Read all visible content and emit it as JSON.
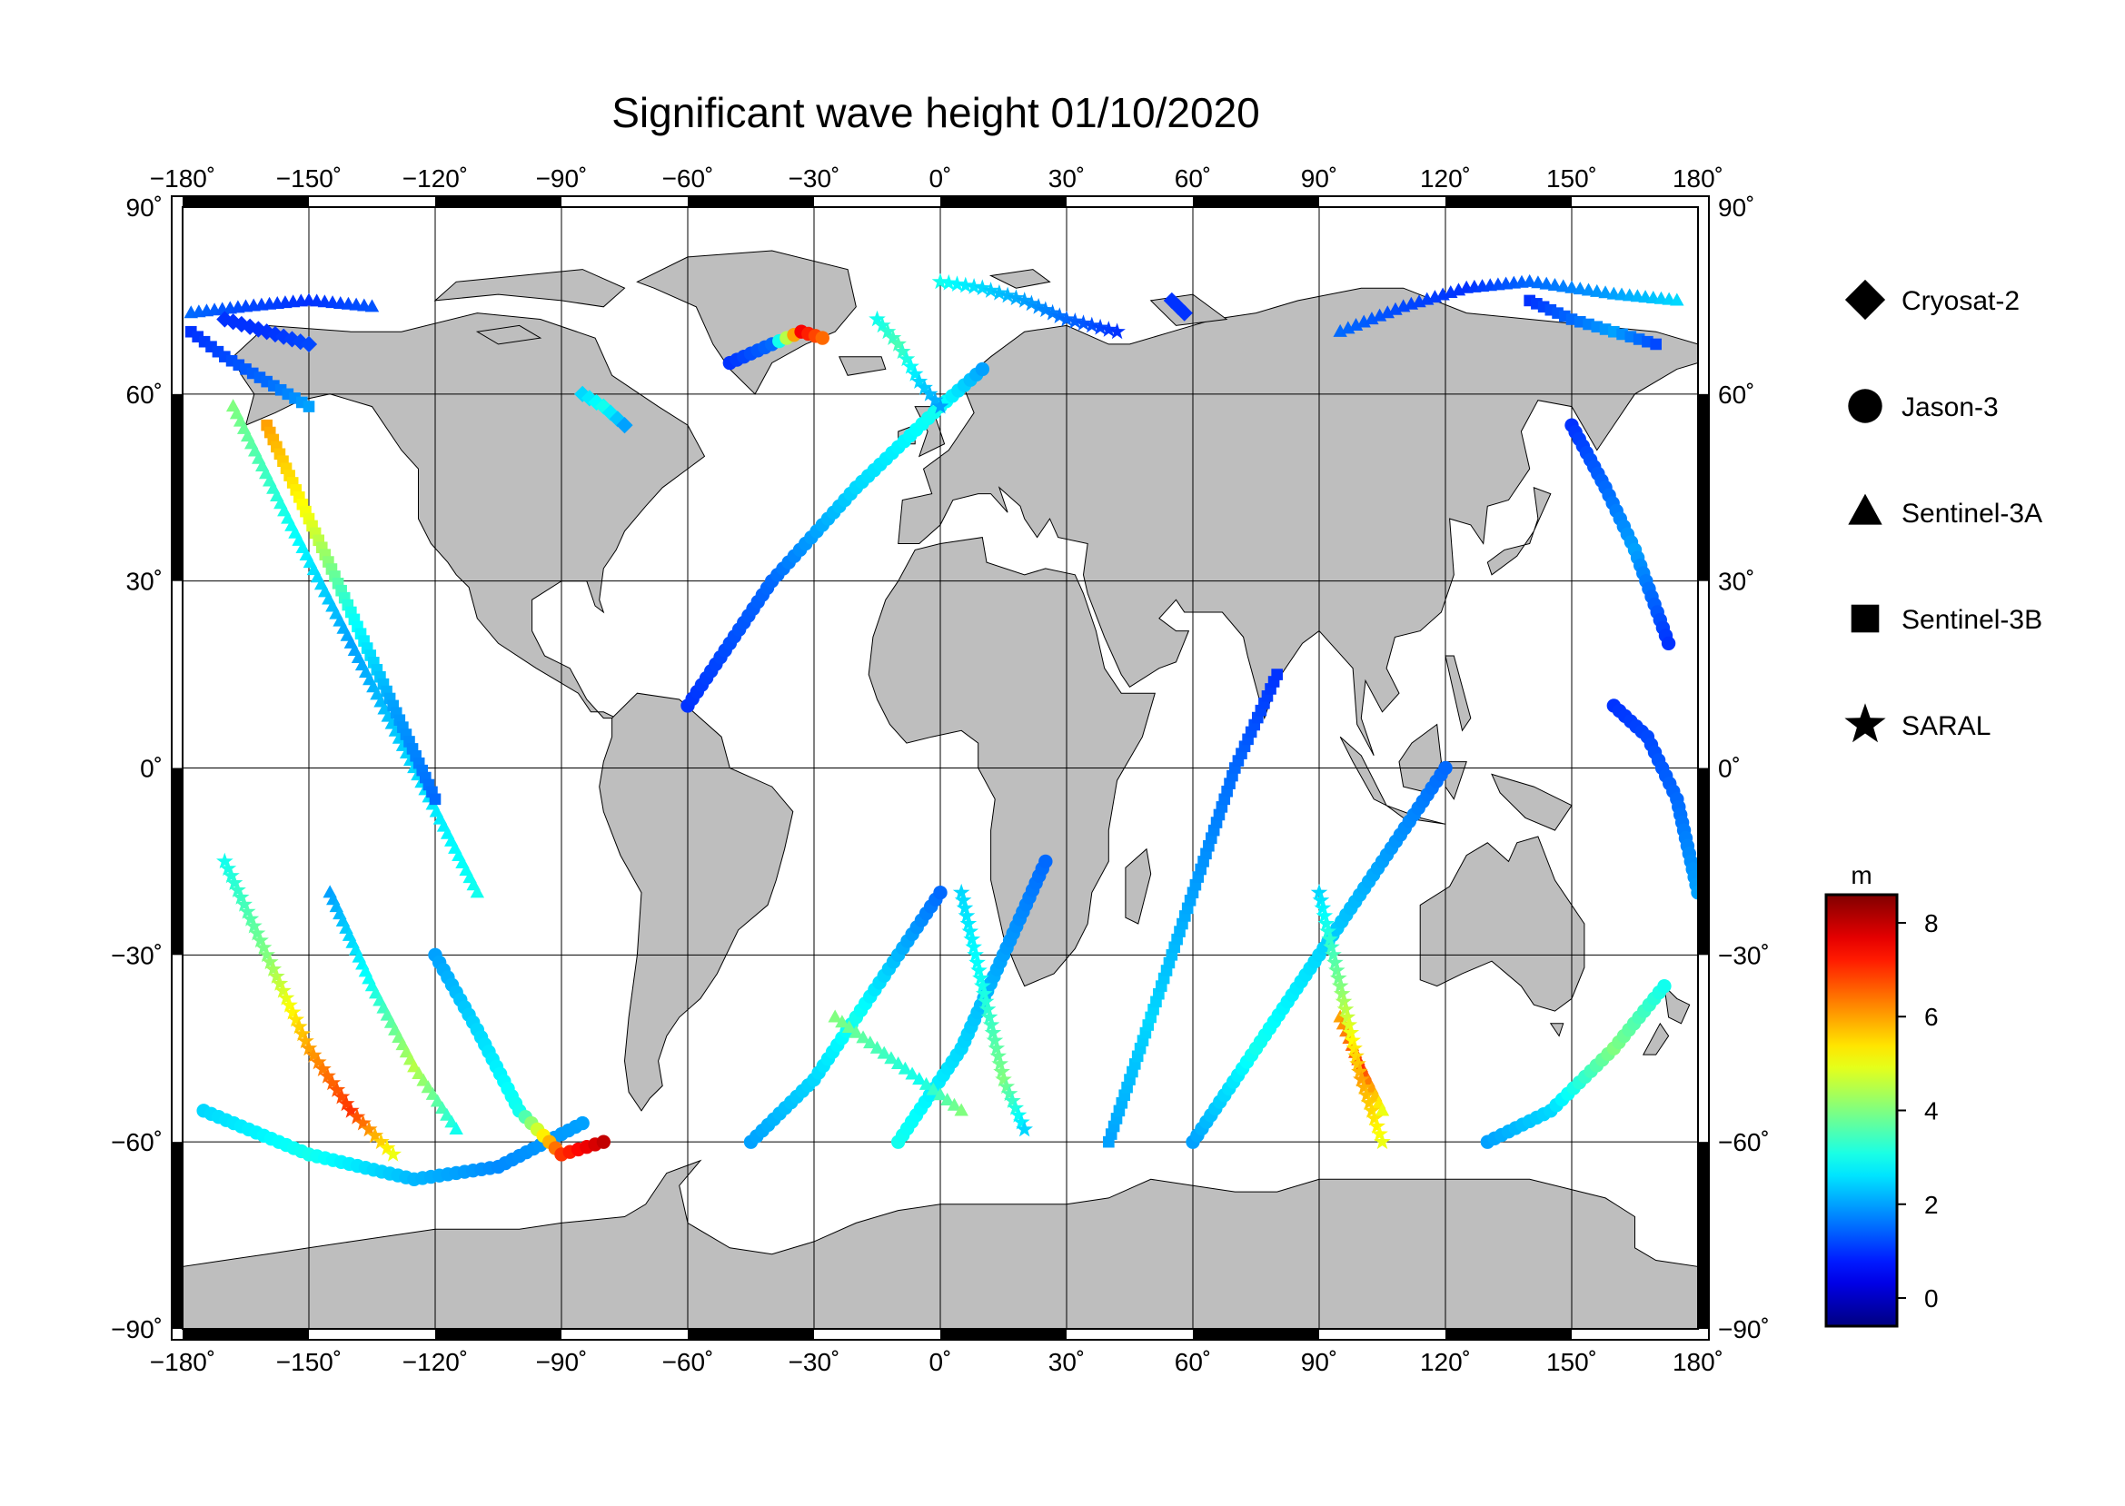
{
  "title": "Significant wave height 01/10/2020",
  "map": {
    "lon_range": [
      -180,
      180
    ],
    "lat_range": [
      -90,
      90
    ],
    "lon_ticks": [
      -180,
      -150,
      -120,
      -90,
      -60,
      -30,
      0,
      30,
      60,
      90,
      120,
      150,
      180
    ],
    "lat_ticks": [
      -90,
      -60,
      -30,
      0,
      30,
      60,
      90
    ],
    "lon_tick_labels": [
      "−180˚",
      "−150˚",
      "−120˚",
      "−90˚",
      "−60˚",
      "−30˚",
      "0˚",
      "30˚",
      "60˚",
      "90˚",
      "120˚",
      "150˚",
      "180˚"
    ],
    "lat_tick_labels": [
      "−90˚",
      "−60˚",
      "−30˚",
      "0˚",
      "30˚",
      "60˚",
      "90˚"
    ],
    "land_color": "#bebebe",
    "ocean_color": "#ffffff",
    "grid": true
  },
  "legend": {
    "items": [
      {
        "label": "Cryosat-2",
        "symbol": "diamond"
      },
      {
        "label": "Jason-3",
        "symbol": "circle"
      },
      {
        "label": "Sentinel-3A",
        "symbol": "triangle"
      },
      {
        "label": "Sentinel-3B",
        "symbol": "square"
      },
      {
        "label": "SARAL",
        "symbol": "star"
      }
    ]
  },
  "colorbar": {
    "unit": "m",
    "min": -0.6,
    "max": 8.6,
    "ticks": [
      0,
      2,
      4,
      6,
      8
    ],
    "tick_labels": [
      "0",
      "2",
      "4",
      "6",
      "8"
    ],
    "colormap": "jet"
  },
  "chart_data": {
    "type": "scatter",
    "title": "Significant wave height 01/10/2020",
    "xlabel": "",
    "ylabel": "",
    "xlim": [
      -180,
      180
    ],
    "ylim": [
      -90,
      90
    ],
    "color_variable": "significant wave height (m)",
    "series": [
      {
        "name": "Jason-3",
        "symbol": "circle",
        "tracks": [
          {
            "lon": [
              -175,
              -150,
              -125,
              -105,
              -85
            ],
            "lat": [
              -55,
              -62,
              -66,
              -64,
              -57
            ],
            "values": [
              2.5,
              3,
              2.2,
              1.8,
              2.0
            ]
          },
          {
            "lon": [
              -120,
              -110,
              -100,
              -90,
              -80
            ],
            "lat": [
              -30,
              -42,
              -55,
              -62,
              -60
            ],
            "values": [
              2,
              2.5,
              3,
              7,
              8
            ]
          },
          {
            "lon": [
              -60,
              -40,
              -20,
              0,
              10
            ],
            "lat": [
              10,
              30,
              45,
              58,
              64
            ],
            "values": [
              1,
              1.5,
              2.5,
              3,
              2
            ]
          },
          {
            "lon": [
              -45,
              -30,
              -20,
              -10,
              0
            ],
            "lat": [
              -60,
              -50,
              -40,
              -30,
              -20
            ],
            "values": [
              2,
              2.5,
              3,
              2.2,
              1.5
            ]
          },
          {
            "lon": [
              -10,
              5,
              15,
              25
            ],
            "lat": [
              -60,
              -45,
              -30,
              -15
            ],
            "values": [
              3,
              2.5,
              2,
              1.5
            ]
          },
          {
            "lon": [
              60,
              75,
              90,
              105,
              120
            ],
            "lat": [
              -60,
              -45,
              -30,
              -15,
              0
            ],
            "values": [
              2,
              3,
              2.5,
              2,
              1.5
            ]
          },
          {
            "lon": [
              130,
              145,
              160,
              172
            ],
            "lat": [
              -60,
              -55,
              -45,
              -35
            ],
            "values": [
              2,
              2.5,
              4,
              3
            ]
          },
          {
            "lon": [
              150,
              158,
              165,
              173
            ],
            "lat": [
              55,
              45,
              35,
              20
            ],
            "values": [
              1,
              1.5,
              2,
              1
            ]
          },
          {
            "lon": [
              160,
              168,
              175,
              180
            ],
            "lat": [
              10,
              5,
              -5,
              -20
            ],
            "values": [
              1,
              1.2,
              1.5,
              2
            ]
          },
          {
            "lon": [
              -50,
              -40,
              -33,
              -28
            ],
            "lat": [
              65,
              68,
              70,
              69
            ],
            "values": [
              1,
              1.5,
              7.5,
              6.5
            ]
          }
        ]
      },
      {
        "name": "Sentinel-3A",
        "symbol": "triangle",
        "tracks": [
          {
            "lon": [
              -178,
              -165,
              -150,
              -135
            ],
            "lat": [
              73,
              74,
              75,
              74
            ],
            "values": [
              1.5,
              1.2,
              1.0,
              1.3
            ]
          },
          {
            "lon": [
              95,
              110,
              125,
              140,
              160,
              175
            ],
            "lat": [
              70,
              74,
              77,
              78,
              76,
              75
            ],
            "values": [
              1.5,
              1.2,
              1.0,
              1.5,
              2.0,
              2.5
            ]
          },
          {
            "lon": [
              -168,
              -155,
              -140,
              -125,
              -110
            ],
            "lat": [
              58,
              40,
              20,
              0,
              -20
            ],
            "values": [
              4,
              3,
              2,
              2.5,
              3
            ]
          },
          {
            "lon": [
              -145,
              -135,
              -125,
              -115
            ],
            "lat": [
              -20,
              -35,
              -48,
              -58
            ],
            "values": [
              2,
              3,
              4.5,
              3
            ]
          },
          {
            "lon": [
              -25,
              -15,
              -5,
              5
            ],
            "lat": [
              -40,
              -45,
              -50,
              -55
            ],
            "values": [
              4,
              3.5,
              3,
              4
            ]
          },
          {
            "lon": [
              95,
              100,
              105
            ],
            "lat": [
              -40,
              -48,
              -55
            ],
            "values": [
              6,
              7,
              5
            ]
          }
        ]
      },
      {
        "name": "Sentinel-3B",
        "symbol": "square",
        "tracks": [
          {
            "lon": [
              -178,
              -170,
              -160,
              -150
            ],
            "lat": [
              70,
              66,
              62,
              58
            ],
            "values": [
              1.0,
              1.2,
              1.5,
              2
            ]
          },
          {
            "lon": [
              140,
              150,
              160,
              170
            ],
            "lat": [
              75,
              72,
              70,
              68
            ],
            "values": [
              1.0,
              1.5,
              2.0,
              1.2
            ]
          },
          {
            "lon": [
              -160,
              -150,
              -140,
              -130,
              -120
            ],
            "lat": [
              55,
              40,
              25,
              10,
              -5
            ],
            "values": [
              6,
              5,
              3,
              2,
              1.5
            ]
          },
          {
            "lon": [
              40,
              50,
              60,
              70,
              80
            ],
            "lat": [
              -60,
              -40,
              -20,
              0,
              15
            ],
            "values": [
              2,
              2.5,
              2,
              1.5,
              1
            ]
          }
        ]
      },
      {
        "name": "SARAL",
        "symbol": "star",
        "tracks": [
          {
            "lon": [
              0,
              10,
              20,
              30,
              42
            ],
            "lat": [
              78,
              77,
              75,
              72,
              70
            ],
            "values": [
              3,
              2.5,
              2,
              1.5,
              1
            ]
          },
          {
            "lon": [
              -15,
              -10,
              -5,
              0
            ],
            "lat": [
              72,
              68,
              62,
              58
            ],
            "values": [
              3,
              3.5,
              2.5,
              2
            ]
          },
          {
            "lon": [
              -170,
              -160,
              -150,
              -140,
              -130
            ],
            "lat": [
              -15,
              -30,
              -45,
              -55,
              -62
            ],
            "values": [
              3,
              4,
              6,
              7,
              5
            ]
          },
          {
            "lon": [
              5,
              10,
              15,
              20
            ],
            "lat": [
              -20,
              -35,
              -50,
              -58
            ],
            "values": [
              2.5,
              3,
              4,
              2.5
            ]
          },
          {
            "lon": [
              90,
              95,
              100,
              105
            ],
            "lat": [
              -20,
              -35,
              -50,
              -60
            ],
            "values": [
              2.5,
              4,
              6,
              5
            ]
          }
        ]
      },
      {
        "name": "Cryosat-2",
        "symbol": "diamond",
        "tracks": [
          {
            "lon": [
              -170,
              -160,
              -150
            ],
            "lat": [
              72,
              70,
              68
            ],
            "values": [
              1.0,
              1.0,
              1.2
            ]
          },
          {
            "lon": [
              55,
              58
            ],
            "lat": [
              75,
              73
            ],
            "values": [
              1.0,
              1.0
            ]
          },
          {
            "lon": [
              -85,
              -80,
              -75
            ],
            "lat": [
              60,
              58,
              55
            ],
            "values": [
              2.5,
              3,
              2
            ]
          }
        ]
      }
    ]
  }
}
